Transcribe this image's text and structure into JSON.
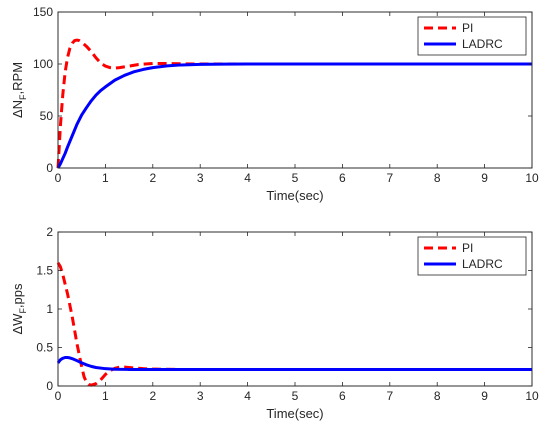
{
  "chart_data": [
    {
      "type": "line",
      "ylabel": "ΔN",
      "ylabel_sub": "F",
      "ylabel_rest": ",RPM",
      "xlabel": "Time(sec)",
      "xlim": [
        0,
        10
      ],
      "ylim": [
        0,
        150
      ],
      "xticks": [
        0,
        1,
        2,
        3,
        4,
        5,
        6,
        7,
        8,
        9,
        10
      ],
      "yticks": [
        0,
        50,
        100,
        150
      ],
      "grid": false,
      "legend": "top-right",
      "series": [
        {
          "name": "PI",
          "color": "#ff0000",
          "style": "dashed",
          "x": [
            0,
            0.05,
            0.1,
            0.15,
            0.2,
            0.25,
            0.3,
            0.35,
            0.4,
            0.45,
            0.5,
            0.55,
            0.6,
            0.7,
            0.8,
            0.9,
            1.0,
            1.1,
            1.2,
            1.3,
            1.5,
            1.7,
            2.0,
            2.3,
            2.6,
            3.0,
            3.5,
            4.0,
            5,
            6,
            7,
            8,
            9,
            10
          ],
          "y": [
            0,
            40,
            70,
            92,
            106,
            115,
            120,
            122.5,
            123,
            122.5,
            121,
            119,
            117,
            112,
            106,
            101,
            98,
            96.5,
            96,
            96.5,
            98,
            99.5,
            100.5,
            100.5,
            100.2,
            100,
            100,
            100,
            100,
            100,
            100,
            100,
            100,
            100
          ]
        },
        {
          "name": "LADRC",
          "color": "#0000ff",
          "style": "solid",
          "x": [
            0,
            0.05,
            0.1,
            0.15,
            0.2,
            0.3,
            0.4,
            0.5,
            0.6,
            0.7,
            0.8,
            0.9,
            1.0,
            1.2,
            1.4,
            1.6,
            1.8,
            2.0,
            2.3,
            2.6,
            3.0,
            3.5,
            4.0,
            5,
            6,
            7,
            8,
            9,
            10
          ],
          "y": [
            0,
            4,
            9,
            14,
            20,
            31,
            42,
            51,
            58,
            64.5,
            70,
            74.5,
            78,
            84.5,
            89,
            92.5,
            94.8,
            96.5,
            98.2,
            99.1,
            99.6,
            99.9,
            100,
            100,
            100,
            100,
            100,
            100,
            100
          ]
        }
      ]
    },
    {
      "type": "line",
      "ylabel": "ΔW",
      "ylabel_sub": "F",
      "ylabel_rest": ",pps",
      "xlabel": "Time(sec)",
      "xlim": [
        0,
        10
      ],
      "ylim": [
        0,
        2
      ],
      "xticks": [
        0,
        1,
        2,
        3,
        4,
        5,
        6,
        7,
        8,
        9,
        10
      ],
      "yticks": [
        0,
        0.5,
        1,
        1.5,
        2
      ],
      "grid": false,
      "legend": "top-right",
      "series": [
        {
          "name": "PI",
          "color": "#ff0000",
          "style": "dashed",
          "x": [
            0,
            0.05,
            0.1,
            0.2,
            0.3,
            0.4,
            0.5,
            0.55,
            0.6,
            0.65,
            0.7,
            0.8,
            0.9,
            1.0,
            1.1,
            1.2,
            1.3,
            1.4,
            1.5,
            1.6,
            1.8,
            2.0,
            2.5,
            3.0,
            4,
            5,
            6,
            7,
            8,
            9,
            10
          ],
          "y": [
            1.6,
            1.55,
            1.45,
            1.2,
            0.9,
            0.55,
            0.25,
            0.12,
            0.05,
            0.02,
            0.01,
            0.03,
            0.08,
            0.15,
            0.2,
            0.23,
            0.245,
            0.245,
            0.24,
            0.235,
            0.225,
            0.22,
            0.215,
            0.215,
            0.215,
            0.215,
            0.215,
            0.215,
            0.215,
            0.215,
            0.215
          ]
        },
        {
          "name": "LADRC",
          "color": "#0000ff",
          "style": "solid",
          "x": [
            0,
            0.05,
            0.1,
            0.15,
            0.2,
            0.25,
            0.3,
            0.4,
            0.5,
            0.6,
            0.7,
            0.8,
            1.0,
            1.2,
            1.5,
            2.0,
            2.5,
            3.0,
            4,
            5,
            6,
            7,
            8,
            9,
            10
          ],
          "y": [
            0.3,
            0.34,
            0.36,
            0.37,
            0.37,
            0.365,
            0.355,
            0.33,
            0.3,
            0.275,
            0.255,
            0.24,
            0.225,
            0.218,
            0.215,
            0.215,
            0.215,
            0.215,
            0.215,
            0.215,
            0.215,
            0.215,
            0.215,
            0.215,
            0.215
          ]
        }
      ]
    }
  ]
}
